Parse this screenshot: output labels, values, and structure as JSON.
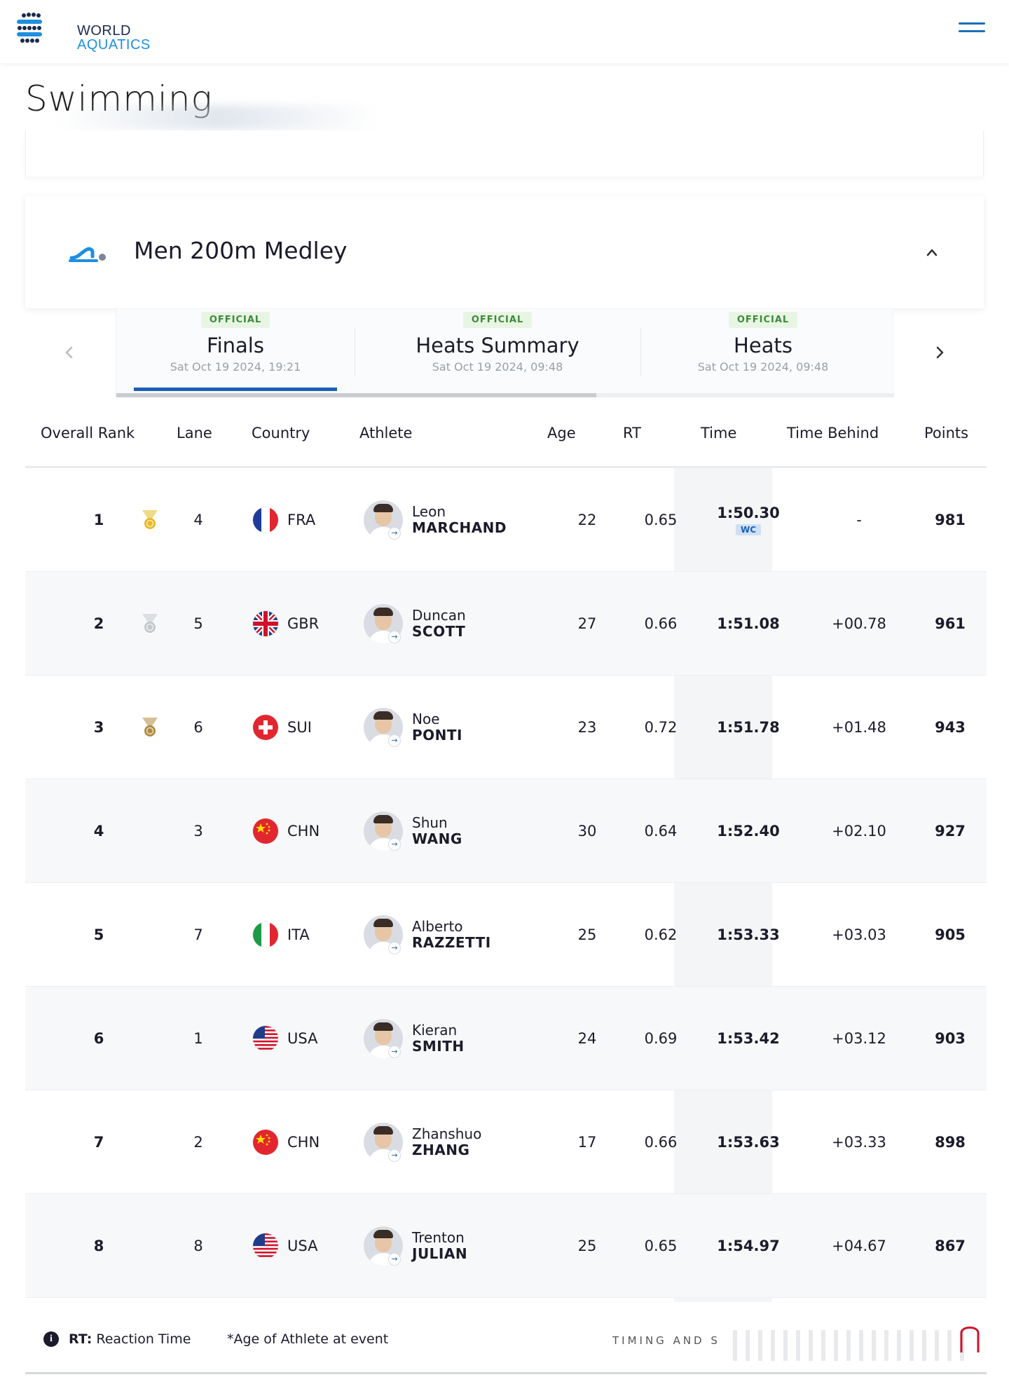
{
  "brand": {
    "line1": "WORLD",
    "line2": "AQUATICS"
  },
  "page": {
    "title": "Swimming"
  },
  "event": {
    "title": "Men 200m Medley"
  },
  "tabs": [
    {
      "badge": "OFFICIAL",
      "name": "Finals",
      "date": "Sat Oct 19 2024, 19:21",
      "active": true
    },
    {
      "badge": "OFFICIAL",
      "name": "Heats Summary",
      "date": "Sat Oct 19 2024, 09:48",
      "active": false
    },
    {
      "badge": "OFFICIAL",
      "name": "Heats",
      "date": "Sat Oct 19 2024, 09:48",
      "active": false
    }
  ],
  "table": {
    "headers": {
      "rank": "Overall Rank",
      "lane": "Lane",
      "country": "Country",
      "athlete": "Athlete",
      "age": "Age",
      "rt": "RT",
      "time": "Time",
      "behind": "Time Behind",
      "points": "Points"
    },
    "rows": [
      {
        "rank": "1",
        "medal": "gold",
        "lane": "4",
        "country": "FRA",
        "first": "Leon",
        "last": "MARCHAND",
        "age": "22",
        "rt": "0.65",
        "time": "1:50.30",
        "record": "WC",
        "behind": "-",
        "points": "981"
      },
      {
        "rank": "2",
        "medal": "silver",
        "lane": "5",
        "country": "GBR",
        "first": "Duncan",
        "last": "SCOTT",
        "age": "27",
        "rt": "0.66",
        "time": "1:51.08",
        "record": "",
        "behind": "+00.78",
        "points": "961"
      },
      {
        "rank": "3",
        "medal": "bronze",
        "lane": "6",
        "country": "SUI",
        "first": "Noe",
        "last": "PONTI",
        "age": "23",
        "rt": "0.72",
        "time": "1:51.78",
        "record": "",
        "behind": "+01.48",
        "points": "943"
      },
      {
        "rank": "4",
        "medal": "",
        "lane": "3",
        "country": "CHN",
        "first": "Shun",
        "last": "WANG",
        "age": "30",
        "rt": "0.64",
        "time": "1:52.40",
        "record": "",
        "behind": "+02.10",
        "points": "927"
      },
      {
        "rank": "5",
        "medal": "",
        "lane": "7",
        "country": "ITA",
        "first": "Alberto",
        "last": "RAZZETTI",
        "age": "25",
        "rt": "0.62",
        "time": "1:53.33",
        "record": "",
        "behind": "+03.03",
        "points": "905"
      },
      {
        "rank": "6",
        "medal": "",
        "lane": "1",
        "country": "USA",
        "first": "Kieran",
        "last": "SMITH",
        "age": "24",
        "rt": "0.69",
        "time": "1:53.42",
        "record": "",
        "behind": "+03.12",
        "points": "903"
      },
      {
        "rank": "7",
        "medal": "",
        "lane": "2",
        "country": "CHN",
        "first": "Zhanshuo",
        "last": "ZHANG",
        "age": "17",
        "rt": "0.66",
        "time": "1:53.63",
        "record": "",
        "behind": "+03.33",
        "points": "898"
      },
      {
        "rank": "8",
        "medal": "",
        "lane": "8",
        "country": "USA",
        "first": "Trenton",
        "last": "JULIAN",
        "age": "25",
        "rt": "0.65",
        "time": "1:54.97",
        "record": "",
        "behind": "+04.67",
        "points": "867"
      }
    ]
  },
  "footer": {
    "rt_label": "RT:",
    "rt_text": "Reaction Time",
    "age_note": "*Age of Athlete at event",
    "timing": "TIMING AND S"
  },
  "icons": {
    "menu": "menu-icon",
    "event": "swimmer-icon",
    "collapse": "chevron-up-icon",
    "prev": "chevron-left-icon",
    "next": "chevron-right-icon",
    "info": "info-icon"
  },
  "colors": {
    "accent": "#1b5fb4",
    "brand_blue": "#1e8fe0",
    "official_badge_bg": "#e8f5e3",
    "official_badge_text": "#3c8a3a",
    "gold": "#e8b923",
    "silver": "#c4c8cd",
    "bronze": "#b08b3e"
  }
}
